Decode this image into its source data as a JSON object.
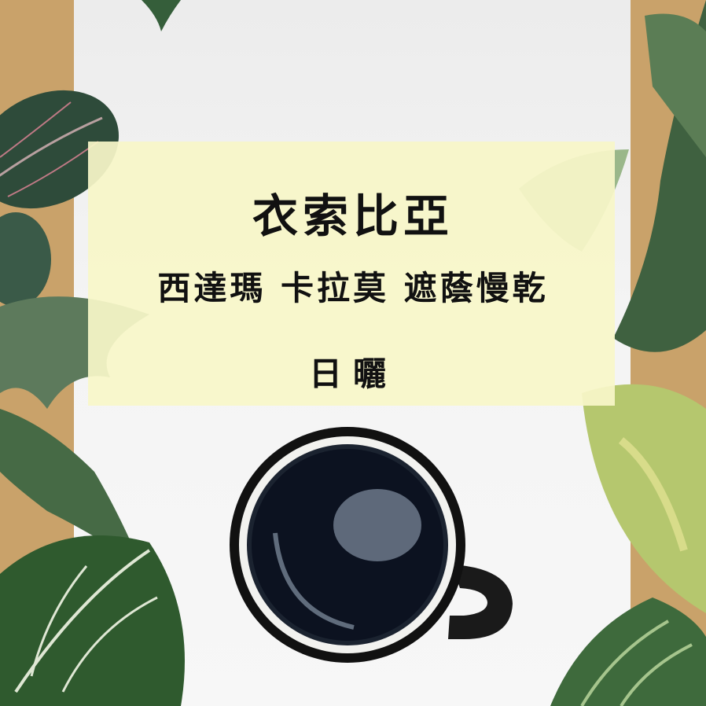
{
  "product": {
    "origin": "衣索比亞",
    "region_line": "西達瑪 卡拉莫 遮蔭慢乾",
    "process": "日曬"
  },
  "palette": {
    "background": "#c9a26a",
    "panel": "#f4f4f4",
    "label_box": "#f8f6c8",
    "coffee": "#0c1220",
    "leaf_dark": "#2f5a2e",
    "leaf_light": "#9ab78a",
    "leaf_variegated": "#d8dc8a"
  }
}
